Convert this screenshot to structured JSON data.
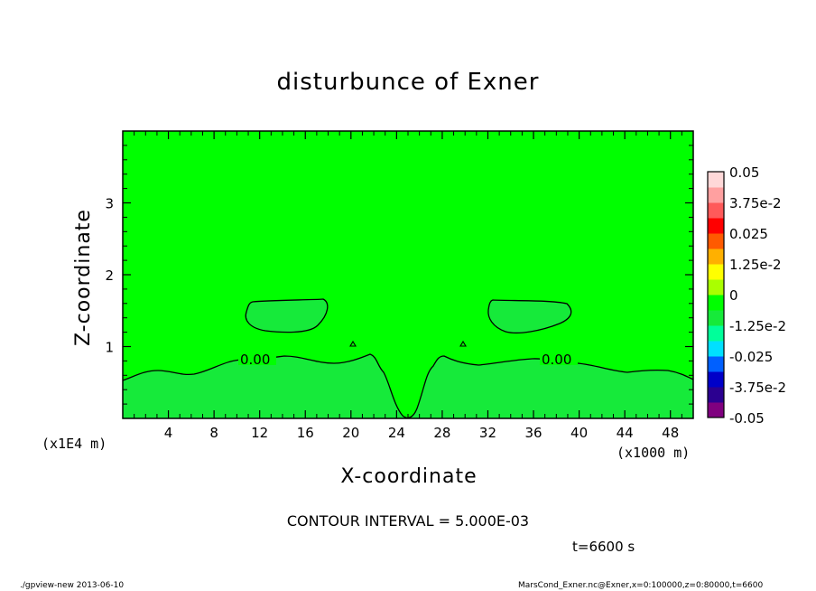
{
  "chart_data": {
    "type": "heatmap",
    "title": "disturbunce of Exner",
    "xlabel": "X-coordinate",
    "ylabel": "Z-coordinate",
    "x_unit_note": "(x1000 m)",
    "y_unit_note": "(x1E4 m)",
    "xlim": [
      0,
      50
    ],
    "ylim": [
      0,
      4
    ],
    "x_ticks": [
      "4",
      "8",
      "12",
      "16",
      "20",
      "24",
      "28",
      "32",
      "36",
      "40",
      "44",
      "48"
    ],
    "y_ticks": [
      "1",
      "2",
      "3"
    ],
    "contour_labels": [
      "0.00",
      "0.00"
    ],
    "background_level_color": "#00ff00",
    "contour_interval_text": "CONTOUR INTERVAL = 5.000E-03",
    "time_text": "t=6600 s",
    "colorbar": {
      "labels": [
        "0.05",
        "3.75e-2",
        "0.025",
        "1.25e-2",
        "0",
        "-1.25e-2",
        "-0.025",
        "-3.75e-2",
        "-0.05"
      ],
      "colors": [
        "#7f007f",
        "#2b0090",
        "#0000c8",
        "#0060ff",
        "#00e0ff",
        "#00ff9a",
        "#16ea3a",
        "#00ff00",
        "#aaff00",
        "#ffff00",
        "#ffb000",
        "#ff5a00",
        "#ff0000",
        "#ff5a5a",
        "#ffa0a0",
        "#ffd8d8"
      ]
    }
  },
  "footer": {
    "left": "./gpview-new  2013-06-10",
    "right": "MarsCond_Exner.nc@Exner,x=0:100000,z=0:80000,t=6600"
  }
}
